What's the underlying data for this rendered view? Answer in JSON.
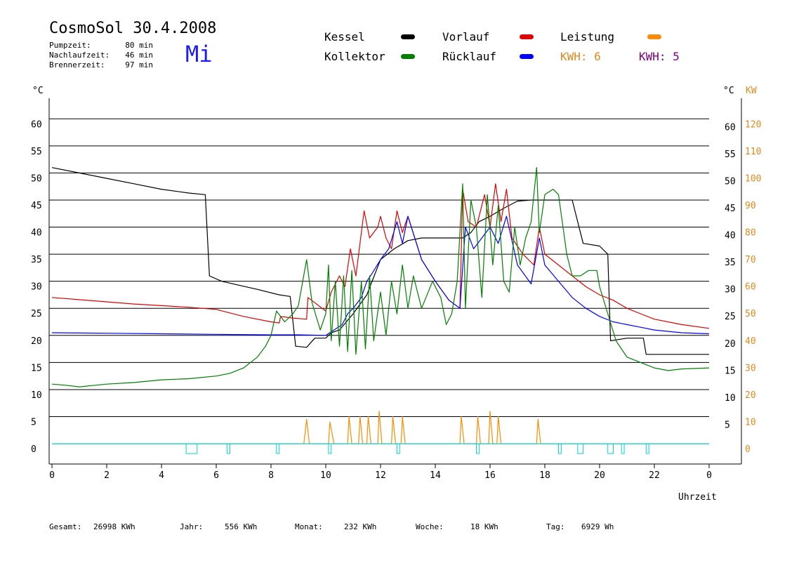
{
  "header": {
    "title": "CosmoSol 30.4.2008",
    "weekday": "Mi",
    "stats": [
      {
        "label": "Pumpzeit:",
        "value": "80 min"
      },
      {
        "label": "Nachlaufzeit:",
        "value": "46 min"
      },
      {
        "label": "Brennerzeit:",
        "value": "97 min"
      }
    ]
  },
  "legend": {
    "items": [
      {
        "label": "Kessel",
        "color": "#000000"
      },
      {
        "label": "Vorlauf",
        "color": "#e00000"
      },
      {
        "label": "Leistung",
        "color": "#ff8c00"
      },
      {
        "label": "Kollektor",
        "color": "#008000"
      },
      {
        "label": "Rücklauf",
        "color": "#0000ff"
      }
    ],
    "kwh": [
      {
        "text": "KWH: 6",
        "color": "#e08a1e"
      },
      {
        "text": "KWH: 5",
        "color": "#800080"
      }
    ]
  },
  "axes": {
    "left_unit": "°C",
    "right_unit": "°C",
    "right2_unit": "KW",
    "x_label": "Uhrzeit",
    "temp_ticks": [
      0,
      5,
      10,
      15,
      20,
      25,
      30,
      35,
      40,
      45,
      50,
      55,
      60
    ],
    "right_temp_ticks": [
      5,
      10,
      15,
      20,
      25,
      30,
      35,
      40,
      45,
      50,
      55,
      60
    ],
    "kw_ticks": [
      0,
      10,
      20,
      30,
      40,
      50,
      60,
      70,
      80,
      90,
      100,
      110,
      120
    ],
    "x_ticks": [
      "0",
      "2",
      "4",
      "6",
      "8",
      "10",
      "12",
      "14",
      "16",
      "18",
      "20",
      "22",
      "0"
    ],
    "kw_color": "#e08a1e"
  },
  "footer": [
    {
      "label": "Gesamt:",
      "value": "26998 KWh"
    },
    {
      "label": "Jahr:",
      "value": "556 KWh"
    },
    {
      "label": "Monat:",
      "value": "232 KWh"
    },
    {
      "label": "Woche:",
      "value": "18 KWh"
    },
    {
      "label": "Tag:",
      "value": "6929 Wh"
    }
  ],
  "chart_data": {
    "type": "line",
    "xlabel": "Uhrzeit",
    "ylabel": "°C",
    "xlim": [
      0,
      24
    ],
    "ylim": [
      -3.75,
      62.5
    ],
    "grid": true,
    "series": [
      {
        "name": "Kessel",
        "color": "#000000",
        "points": [
          [
            0,
            51
          ],
          [
            1,
            50
          ],
          [
            2,
            49
          ],
          [
            3,
            48
          ],
          [
            4,
            47
          ],
          [
            5,
            46.3
          ],
          [
            5.6,
            46
          ],
          [
            5.75,
            31
          ],
          [
            6.2,
            30
          ],
          [
            6.8,
            29.3
          ],
          [
            7.5,
            28.5
          ],
          [
            8.3,
            27.5
          ],
          [
            8.7,
            27.2
          ],
          [
            8.9,
            18
          ],
          [
            9.3,
            17.8
          ],
          [
            9.6,
            19.5
          ],
          [
            10,
            19.5
          ],
          [
            10.2,
            20.5
          ],
          [
            10.5,
            21
          ],
          [
            11,
            24
          ],
          [
            11.5,
            27.5
          ],
          [
            12,
            34
          ],
          [
            12.5,
            36
          ],
          [
            13,
            37.5
          ],
          [
            13.5,
            38
          ],
          [
            14,
            38
          ],
          [
            14.5,
            38
          ],
          [
            15,
            38
          ],
          [
            15.3,
            39
          ],
          [
            15.6,
            41
          ],
          [
            16,
            42
          ],
          [
            16.5,
            43.5
          ],
          [
            17,
            44.8
          ],
          [
            17.5,
            45
          ],
          [
            18,
            45
          ],
          [
            18.6,
            45
          ],
          [
            19,
            45
          ],
          [
            19.4,
            37
          ],
          [
            20,
            36.5
          ],
          [
            20.3,
            35
          ],
          [
            20.4,
            19
          ],
          [
            21,
            19.5
          ],
          [
            21.6,
            19.5
          ],
          [
            21.7,
            16.5
          ],
          [
            22.5,
            16.5
          ],
          [
            24,
            16.5
          ]
        ]
      },
      {
        "name": "Vorlauf",
        "color": "#e00000",
        "points": [
          [
            0,
            27
          ],
          [
            1,
            26.6
          ],
          [
            2,
            26.2
          ],
          [
            3,
            25.8
          ],
          [
            4,
            25.5
          ],
          [
            5,
            25.2
          ],
          [
            6,
            24.8
          ],
          [
            7,
            23.5
          ],
          [
            8,
            22.5
          ],
          [
            8.3,
            22.3
          ],
          [
            8.35,
            23.5
          ],
          [
            8.8,
            23.2
          ],
          [
            9.3,
            23
          ],
          [
            9.35,
            27
          ],
          [
            10,
            24.5
          ],
          [
            10.2,
            28
          ],
          [
            10.5,
            31
          ],
          [
            10.7,
            29
          ],
          [
            10.9,
            36
          ],
          [
            11.1,
            31
          ],
          [
            11.4,
            43
          ],
          [
            11.6,
            38
          ],
          [
            11.9,
            40
          ],
          [
            12,
            42
          ],
          [
            12.2,
            38
          ],
          [
            12.4,
            36
          ],
          [
            12.6,
            43
          ],
          [
            12.8,
            39
          ],
          [
            13,
            42
          ],
          [
            13.5,
            34
          ],
          [
            14,
            30
          ],
          [
            14.5,
            26.5
          ],
          [
            14.9,
            25
          ],
          [
            15,
            47
          ],
          [
            15.2,
            41
          ],
          [
            15.5,
            40
          ],
          [
            15.8,
            46
          ],
          [
            16,
            40
          ],
          [
            16.2,
            48
          ],
          [
            16.4,
            41
          ],
          [
            16.6,
            47
          ],
          [
            16.8,
            38
          ],
          [
            17.2,
            35
          ],
          [
            17.6,
            33
          ],
          [
            17.8,
            40
          ],
          [
            18,
            35
          ],
          [
            18.5,
            33
          ],
          [
            19,
            31
          ],
          [
            19.5,
            29
          ],
          [
            20,
            27.5
          ],
          [
            20.5,
            26.5
          ],
          [
            21,
            25
          ],
          [
            21.5,
            24
          ],
          [
            22,
            23
          ],
          [
            23,
            22
          ],
          [
            24,
            21.3
          ]
        ]
      },
      {
        "name": "Rücklauf",
        "color": "#0000ff",
        "points": [
          [
            0,
            20.5
          ],
          [
            2,
            20.4
          ],
          [
            4,
            20.3
          ],
          [
            6,
            20.2
          ],
          [
            8,
            20.1
          ],
          [
            9,
            20.1
          ],
          [
            10,
            20
          ],
          [
            10.3,
            21
          ],
          [
            10.6,
            22
          ],
          [
            10.8,
            24
          ],
          [
            11,
            25
          ],
          [
            11.3,
            27
          ],
          [
            11.5,
            30
          ],
          [
            11.7,
            31.5
          ],
          [
            12,
            34
          ],
          [
            12.3,
            36
          ],
          [
            12.6,
            41
          ],
          [
            12.8,
            37
          ],
          [
            13,
            42
          ],
          [
            13.5,
            34
          ],
          [
            14,
            30
          ],
          [
            14.5,
            26.5
          ],
          [
            14.9,
            25
          ],
          [
            15.1,
            40
          ],
          [
            15.4,
            36
          ],
          [
            15.7,
            38
          ],
          [
            16,
            40
          ],
          [
            16.3,
            37
          ],
          [
            16.6,
            42
          ],
          [
            17,
            33
          ],
          [
            17.5,
            29.5
          ],
          [
            17.8,
            38
          ],
          [
            18,
            33
          ],
          [
            18.5,
            30
          ],
          [
            19,
            27
          ],
          [
            19.5,
            25
          ],
          [
            20,
            23.5
          ],
          [
            20.5,
            22.5
          ],
          [
            21,
            22
          ],
          [
            21.5,
            21.5
          ],
          [
            22,
            21
          ],
          [
            23,
            20.5
          ],
          [
            24,
            20.3
          ]
        ]
      },
      {
        "name": "Kollektor",
        "color": "#008000",
        "points": [
          [
            0,
            11
          ],
          [
            0.5,
            10.8
          ],
          [
            1,
            10.5
          ],
          [
            2,
            11
          ],
          [
            3,
            11.3
          ],
          [
            4,
            11.8
          ],
          [
            5,
            12
          ],
          [
            6,
            12.5
          ],
          [
            6.5,
            13
          ],
          [
            7,
            14
          ],
          [
            7.5,
            16
          ],
          [
            7.8,
            18
          ],
          [
            8,
            20
          ],
          [
            8.2,
            24.5
          ],
          [
            8.5,
            22.5
          ],
          [
            8.8,
            24
          ],
          [
            9,
            25.5
          ],
          [
            9.3,
            34
          ],
          [
            9.5,
            26
          ],
          [
            9.8,
            21
          ],
          [
            10,
            24
          ],
          [
            10.1,
            33
          ],
          [
            10.2,
            19
          ],
          [
            10.35,
            30
          ],
          [
            10.5,
            18
          ],
          [
            10.65,
            31
          ],
          [
            10.8,
            17
          ],
          [
            10.95,
            32
          ],
          [
            11.1,
            16.5
          ],
          [
            11.3,
            30
          ],
          [
            11.45,
            17.5
          ],
          [
            11.6,
            31
          ],
          [
            11.75,
            19
          ],
          [
            12,
            28
          ],
          [
            12.2,
            20
          ],
          [
            12.4,
            30
          ],
          [
            12.6,
            24
          ],
          [
            12.8,
            33
          ],
          [
            13,
            25
          ],
          [
            13.2,
            31
          ],
          [
            13.5,
            25
          ],
          [
            13.9,
            30
          ],
          [
            14.2,
            27
          ],
          [
            14.4,
            22
          ],
          [
            14.6,
            24
          ],
          [
            14.8,
            30
          ],
          [
            15,
            48
          ],
          [
            15.1,
            25
          ],
          [
            15.3,
            45
          ],
          [
            15.5,
            40
          ],
          [
            15.7,
            27
          ],
          [
            15.9,
            46
          ],
          [
            16.1,
            33
          ],
          [
            16.3,
            44
          ],
          [
            16.5,
            30
          ],
          [
            16.7,
            28
          ],
          [
            16.9,
            40
          ],
          [
            17.1,
            33
          ],
          [
            17.3,
            38
          ],
          [
            17.5,
            41
          ],
          [
            17.7,
            51
          ],
          [
            17.8,
            39
          ],
          [
            18,
            46
          ],
          [
            18.3,
            47
          ],
          [
            18.5,
            46
          ],
          [
            18.8,
            35
          ],
          [
            19,
            31
          ],
          [
            19.3,
            31
          ],
          [
            19.6,
            32
          ],
          [
            19.9,
            32
          ],
          [
            20,
            29
          ],
          [
            20.3,
            24
          ],
          [
            20.6,
            19
          ],
          [
            21,
            16
          ],
          [
            21.5,
            15
          ],
          [
            22,
            14
          ],
          [
            22.5,
            13.5
          ],
          [
            23,
            13.8
          ],
          [
            24,
            14
          ]
        ]
      },
      {
        "name": "Leistung",
        "color": "#ff8c00",
        "points": [
          [
            0,
            0
          ],
          [
            9.2,
            0
          ],
          [
            9.3,
            4.5
          ],
          [
            9.4,
            0
          ],
          [
            10.1,
            0
          ],
          [
            10.15,
            4
          ],
          [
            10.3,
            0
          ],
          [
            10.8,
            0
          ],
          [
            10.85,
            5
          ],
          [
            10.95,
            0
          ],
          [
            11.2,
            0
          ],
          [
            11.25,
            5
          ],
          [
            11.35,
            0
          ],
          [
            11.5,
            0
          ],
          [
            11.55,
            5
          ],
          [
            11.65,
            0
          ],
          [
            11.9,
            0
          ],
          [
            11.95,
            6
          ],
          [
            12.05,
            0
          ],
          [
            12.4,
            0
          ],
          [
            12.45,
            5
          ],
          [
            12.55,
            0
          ],
          [
            12.75,
            0
          ],
          [
            12.8,
            5
          ],
          [
            12.9,
            0
          ],
          [
            14.9,
            0
          ],
          [
            14.95,
            5
          ],
          [
            15.05,
            0
          ],
          [
            15.5,
            0
          ],
          [
            15.55,
            5
          ],
          [
            15.65,
            0
          ],
          [
            15.95,
            0
          ],
          [
            16,
            6
          ],
          [
            16.1,
            0
          ],
          [
            16.25,
            0
          ],
          [
            16.3,
            5
          ],
          [
            16.4,
            0
          ],
          [
            17.7,
            0
          ],
          [
            17.75,
            4.5
          ],
          [
            17.85,
            0
          ],
          [
            24,
            0
          ]
        ]
      },
      {
        "name": "Pumpe",
        "color": "#00d8d8",
        "points": [
          [
            0,
            0
          ],
          [
            24,
            0
          ]
        ]
      }
    ]
  }
}
